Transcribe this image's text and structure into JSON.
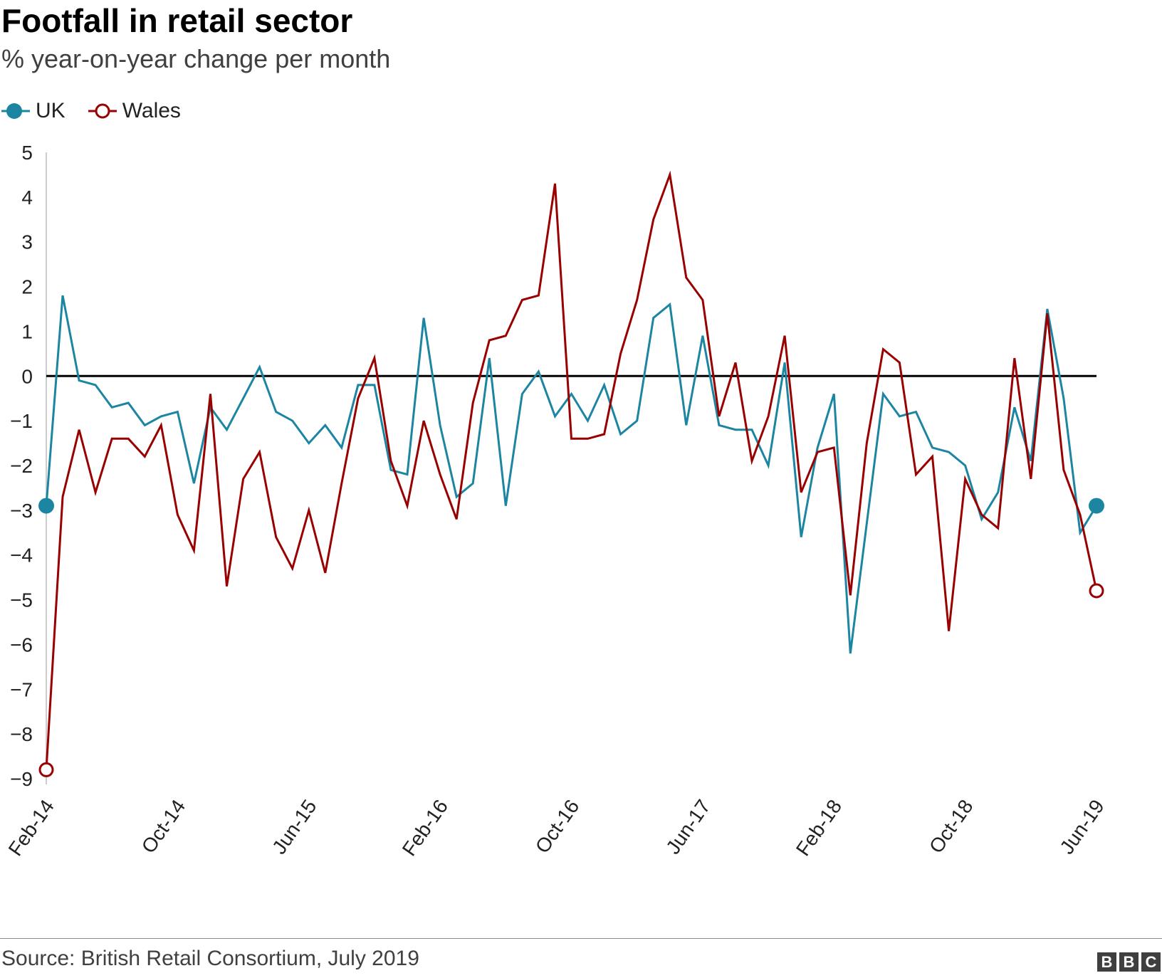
{
  "chart_data": {
    "type": "line",
    "title": "Footfall in retail sector",
    "subtitle": "% year-on-year change per month",
    "ylim": [
      -9,
      5
    ],
    "yticks": [
      "5",
      "4",
      "3",
      "2",
      "1",
      "0",
      "−1",
      "−2",
      "−3",
      "−4",
      "−5",
      "−6",
      "−7",
      "−8",
      "−9"
    ],
    "ytick_values": [
      5,
      4,
      3,
      2,
      1,
      0,
      -1,
      -2,
      -3,
      -4,
      -5,
      -6,
      -7,
      -8,
      -9
    ],
    "xtick_labels": [
      "Feb-14",
      "Oct-14",
      "Jun-15",
      "Feb-16",
      "Oct-16",
      "Jun-17",
      "Feb-18",
      "Oct-18",
      "Jun-19"
    ],
    "xtick_index": [
      0,
      8,
      16,
      24,
      32,
      40,
      48,
      56,
      64
    ],
    "series": [
      {
        "name": "UK",
        "color": "#1b85a2",
        "marker": "filled",
        "values": [
          -2.9,
          1.8,
          -0.1,
          -0.2,
          -0.7,
          -0.6,
          -1.1,
          -0.9,
          -0.8,
          -2.4,
          -0.7,
          -1.2,
          -0.5,
          0.2,
          -0.8,
          -1.0,
          -1.5,
          -1.1,
          -1.6,
          -0.2,
          -0.2,
          -2.1,
          -2.2,
          1.3,
          -1.1,
          -2.7,
          -2.4,
          0.4,
          -2.9,
          -0.4,
          0.1,
          -0.9,
          -0.4,
          -1.0,
          -0.2,
          -1.3,
          -1.0,
          1.3,
          1.6,
          -1.1,
          0.9,
          -1.1,
          -1.2,
          -1.2,
          -2.0,
          0.3,
          -3.6,
          -1.6,
          -0.4,
          -6.2,
          -3.3,
          -0.4,
          -0.9,
          -0.8,
          -1.6,
          -1.7,
          -2.0,
          -3.2,
          -2.6,
          -0.7,
          -1.9,
          1.5,
          -0.5,
          -3.5,
          -2.9
        ]
      },
      {
        "name": "Wales",
        "color": "#990000",
        "marker": "hollow",
        "values": [
          -8.8,
          -2.7,
          -1.2,
          -2.6,
          -1.4,
          -1.4,
          -1.8,
          -1.1,
          -3.1,
          -3.9,
          -0.4,
          -4.7,
          -2.3,
          -1.7,
          -3.6,
          -4.3,
          -3.0,
          -4.4,
          -2.4,
          -0.5,
          0.4,
          -1.9,
          -2.9,
          -1.0,
          -2.2,
          -3.2,
          -0.6,
          0.8,
          0.9,
          1.7,
          1.8,
          4.3,
          -1.4,
          -1.4,
          -1.3,
          0.5,
          1.7,
          3.5,
          4.5,
          2.2,
          1.7,
          -0.9,
          0.3,
          -1.9,
          -0.9,
          0.9,
          -2.6,
          -1.7,
          -1.6,
          -4.9,
          -1.5,
          0.6,
          0.3,
          -2.2,
          -1.8,
          -5.7,
          -2.3,
          -3.1,
          -3.4,
          0.4,
          -2.3,
          1.4,
          -2.1,
          -3.1,
          -4.8
        ]
      }
    ],
    "legend": [
      "UK",
      "Wales"
    ],
    "source": "Source: British Retail Consortium, July 2019"
  },
  "branding": {
    "letters": [
      "B",
      "B",
      "C"
    ]
  }
}
